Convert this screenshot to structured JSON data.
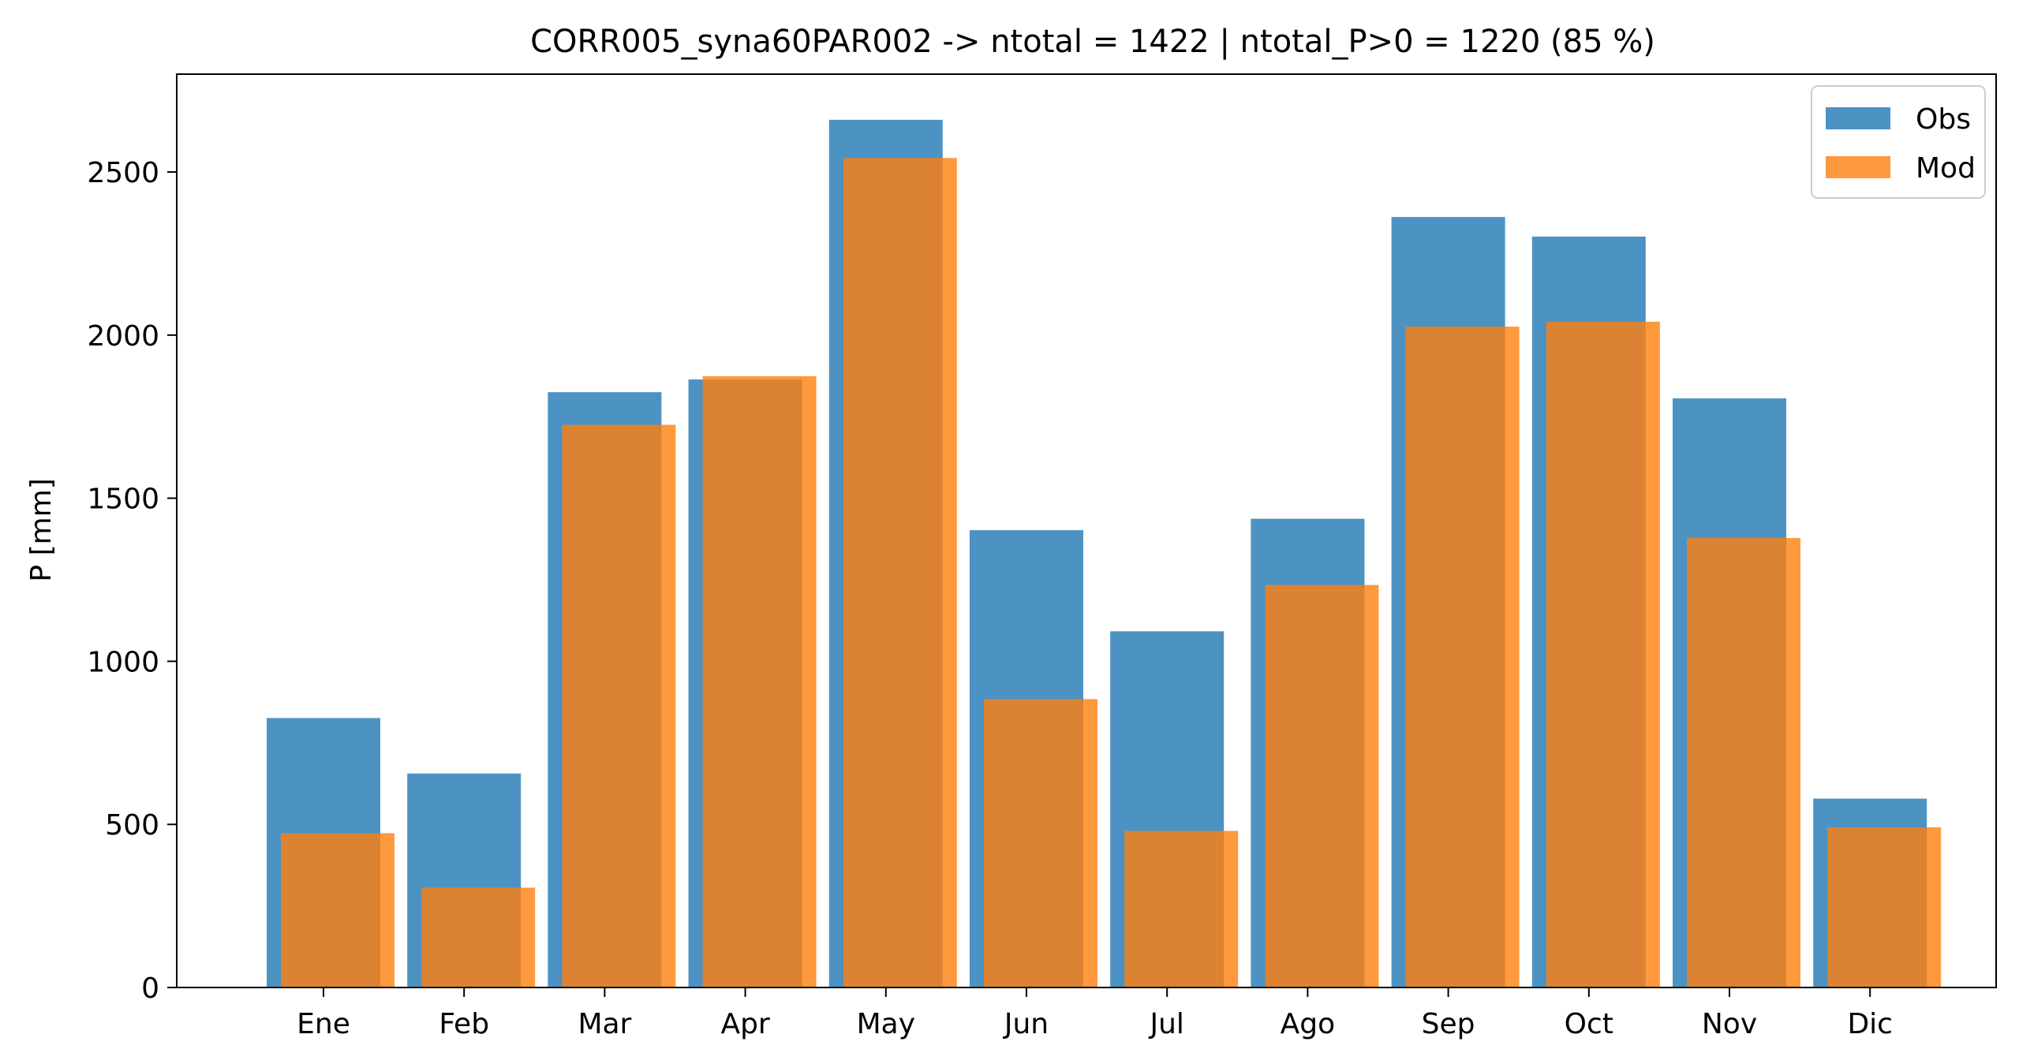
{
  "chart_data": {
    "type": "bar",
    "title": "CORR005_syna60PAR002 -> ntotal = 1422 | ntotal_P>0 = 1220 (85 %)",
    "xlabel": "",
    "ylabel": "P [mm]",
    "categories": [
      "Ene",
      "Feb",
      "Mar",
      "Apr",
      "May",
      "Jun",
      "Jul",
      "Ago",
      "Sep",
      "Oct",
      "Nov",
      "Dic"
    ],
    "ylim": [
      0,
      2800
    ],
    "yticks": [
      0,
      500,
      1000,
      1500,
      2000,
      2500
    ],
    "legend_position": "upper-right",
    "grid": false,
    "series": [
      {
        "name": "Obs",
        "color": "#1f77b4",
        "alpha": 0.8,
        "values": [
          826,
          656,
          1825,
          1864,
          2660,
          1402,
          1092,
          1437,
          2362,
          2302,
          1806,
          579
        ]
      },
      {
        "name": "Mod",
        "color": "#ff7f0e",
        "alpha": 0.8,
        "values": [
          473,
          306,
          1725,
          1874,
          2543,
          884,
          480,
          1234,
          2026,
          2041,
          1378,
          491
        ]
      }
    ]
  }
}
